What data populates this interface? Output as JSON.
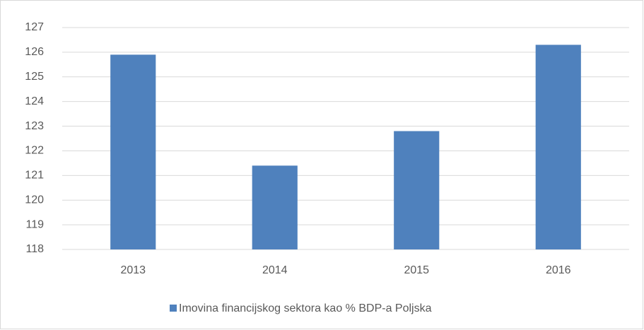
{
  "chart_data": {
    "type": "bar",
    "categories": [
      "2013",
      "2014",
      "2015",
      "2016"
    ],
    "series": [
      {
        "name": "Imovina financijskog sektora kao % BDP-a Poljska",
        "color": "#4f81bd",
        "values": [
          125.9,
          121.4,
          122.8,
          126.3
        ]
      }
    ],
    "ylim": [
      118,
      127
    ],
    "yticks": [
      118,
      119,
      120,
      121,
      122,
      123,
      124,
      125,
      126,
      127
    ],
    "grid": true,
    "legend": "bottom"
  }
}
